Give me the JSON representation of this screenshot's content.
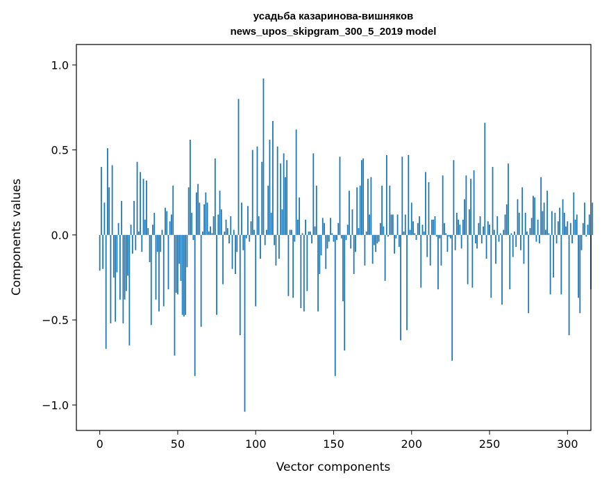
{
  "chart_data": {
    "type": "bar",
    "title": "усадьба казаринова-вишняков",
    "subtitle": "news_upos_skipgram_300_5_2019 model",
    "xlabel": "Vector components",
    "ylabel": "Components values",
    "xlim": [
      -15,
      315
    ],
    "ylim": [
      -1.15,
      1.12
    ],
    "xticks": [
      0,
      50,
      100,
      150,
      200,
      250,
      300
    ],
    "yticks": [
      -1.0,
      -0.5,
      0.0,
      0.5,
      1.0
    ],
    "xtick_labels": [
      "0",
      "50",
      "100",
      "150",
      "200",
      "250",
      "300"
    ],
    "ytick_labels": [
      "−1.0",
      "−0.5",
      "0.0",
      "0.5",
      "1.0"
    ],
    "bar_color": "#1f77b4",
    "grid": false,
    "values": [
      -0.21,
      0.4,
      -0.2,
      0.19,
      -0.67,
      0.51,
      0.28,
      -0.52,
      0.41,
      -0.25,
      -0.51,
      -0.22,
      0.07,
      -0.38,
      0.2,
      -0.52,
      -0.38,
      -0.33,
      -0.24,
      -0.65,
      0.06,
      -0.11,
      0.2,
      -0.09,
      0.43,
      0.02,
      0.37,
      -0.1,
      0.33,
      0.09,
      0.32,
      0.04,
      -0.16,
      -0.53,
      0.06,
      0.13,
      -0.38,
      -0.1,
      -0.45,
      -0.1,
      0.03,
      -0.42,
      0.16,
      0.14,
      -0.32,
      0.08,
      0.12,
      0.29,
      -0.71,
      -0.34,
      -0.35,
      -0.17,
      -0.27,
      -0.47,
      -0.48,
      -0.47,
      -0.19,
      0.28,
      0.56,
      0.13,
      -0.03,
      -0.83,
      0.25,
      0.3,
      0.19,
      -0.54,
      0.02,
      0.18,
      0.25,
      0.19,
      0.02,
      0.05,
      0.01,
      0.11,
      0.45,
      -0.47,
      0.12,
      0.26,
      0.15,
      -0.29,
      0.02,
      0.09,
      0.04,
      -0.05,
      0.11,
      -0.2,
      0.03,
      -0.23,
      -0.1,
      0.8,
      -0.59,
      0.19,
      -0.09,
      -1.04,
      -0.02,
      0.17,
      -0.04,
      0.08,
      0.5,
      0.03,
      -0.42,
      0.52,
      0.11,
      -0.14,
      0.43,
      0.92,
      -0.06,
      0.03,
      0.29,
      0.56,
      0.13,
      0.67,
      -0.06,
      -0.18,
      0.52,
      -0.14,
      0.42,
      0.15,
      0.48,
      0.34,
      0.44,
      -0.36,
      0.03,
      0.03,
      -0.37,
      -0.04,
      0.62,
      0.09,
      0.22,
      -0.43,
      0.01,
      -0.45,
      0.09,
      -0.33,
      0.02,
      0.02,
      -0.05,
      0.48,
      0.05,
      0.29,
      -0.45,
      -0.23,
      -0.12,
      0.1,
      0.07,
      -0.2,
      -0.08,
      -0.04,
      0.1,
      0.01,
      -0.04,
      -0.83,
      -0.03,
      0.07,
      0.46,
      -0.02,
      -0.39,
      -0.68,
      -0.03,
      0.06,
      0.26,
      -0.08,
      0.15,
      -0.23,
      -0.1,
      0.28,
      0.04,
      0.29,
      0.44,
      0.45,
      -0.18,
      0.02,
      0.33,
      0.12,
      0.34,
      -0.17,
      -0.06,
      -0.1,
      -0.05,
      -0.04,
      0.07,
      0.29,
      0.05,
      -0.27,
      0.47,
      -0.01,
      0.29,
      0.12,
      0.12,
      -0.11,
      -0.02,
      0.12,
      -0.07,
      -0.62,
      0.46,
      0.02,
      0.12,
      -0.56,
      0.47,
      0.03,
      0.19,
      0.08,
      0.01,
      -0.03,
      0.07,
      0.11,
      -0.31,
      0.06,
      0.02,
      0.37,
      -0.13,
      0.31,
      -0.18,
      0.09,
      0.09,
      0.11,
      -0.01,
      -0.32,
      -0.02,
      -0.18,
      0.35,
      0.07,
      0.01,
      -0.1,
      -0.01,
      -0.02,
      -0.74,
      0.44,
      -0.09,
      0.13,
      0.09,
      0.06,
      -0.08,
      0.09,
      0.21,
      0.35,
      -0.29,
      0.15,
      0.33,
      -0.31,
      0.38,
      -0.05,
      -0.08,
      0.07,
      0.11,
      -0.05,
      0.05,
      0.66,
      -0.14,
      0.08,
      0.06,
      -0.37,
      0.4,
      0.03,
      -0.17,
      0.11,
      -0.04,
      0.01,
      -0.41,
      0.03,
      0.12,
      0.18,
      0.42,
      -0.32,
      0.01,
      -0.13,
      0.02,
      -0.07,
      0.21,
      0.13,
      -0.09,
      0.28,
      -0.17,
      0.13,
      0.02,
      -0.46,
      0.04,
      0.1,
      0.23,
      0.22,
      -0.04,
      0.09,
      -0.05,
      0.34,
      0.14,
      0.19,
      0.03,
      0.26,
      0.01,
      -0.35,
      0.14,
      -0.25,
      0.13,
      -0.05,
      0.08,
      0.16,
      -0.35,
      0.21,
      0.13,
      0.05,
      0.08,
      -0.59,
      0.07,
      -0.05,
      0.25,
      0.09,
      0.12,
      -0.37,
      -0.46,
      -0.09,
      0.07,
      0.19,
      -0.01,
      0.06,
      0.12,
      -0.32,
      0.19
    ]
  }
}
